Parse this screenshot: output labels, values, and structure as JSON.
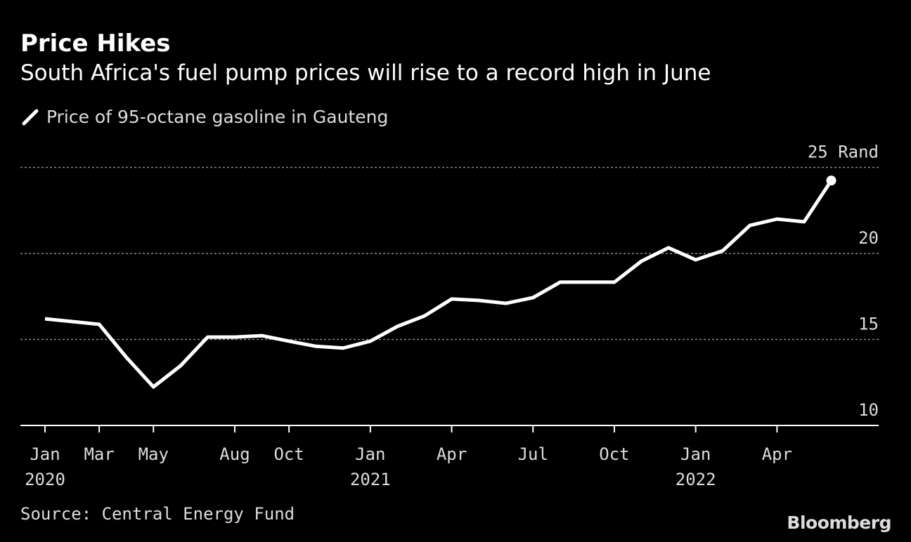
{
  "header": {
    "title": "Price Hikes",
    "subtitle": "South Africa's fuel pump prices will rise to a record high in June"
  },
  "footer": {
    "source": "Source: Central Energy Fund",
    "logo": "Bloomberg"
  },
  "chart_data": {
    "type": "line",
    "title": "Price Hikes",
    "subtitle": "South Africa's fuel pump prices will rise to a record high in June",
    "legend": [
      "Price of 95-octane gasoline in Gauteng"
    ],
    "ylabel": "Rand",
    "ylim": [
      10,
      25
    ],
    "yticks": [
      {
        "value": 25,
        "label": "25 Rand"
      },
      {
        "value": 20,
        "label": "20"
      },
      {
        "value": 15,
        "label": "15"
      },
      {
        "value": 10,
        "label": "10"
      }
    ],
    "xticks": [
      {
        "index": 0,
        "label": "Jan",
        "year": "2020"
      },
      {
        "index": 2,
        "label": "Mar",
        "year": ""
      },
      {
        "index": 4,
        "label": "May",
        "year": ""
      },
      {
        "index": 7,
        "label": "Aug",
        "year": ""
      },
      {
        "index": 9,
        "label": "Oct",
        "year": ""
      },
      {
        "index": 12,
        "label": "Jan",
        "year": "2021"
      },
      {
        "index": 15,
        "label": "Apr",
        "year": ""
      },
      {
        "index": 18,
        "label": "Jul",
        "year": ""
      },
      {
        "index": 21,
        "label": "Oct",
        "year": ""
      },
      {
        "index": 24,
        "label": "Jan",
        "year": "2022"
      },
      {
        "index": 27,
        "label": "Apr",
        "year": ""
      }
    ],
    "grid": true,
    "series": [
      {
        "name": "Price of 95-octane gasoline in Gauteng",
        "color": "#ffffff",
        "x": [
          "2020-01",
          "2020-02",
          "2020-03",
          "2020-04",
          "2020-05",
          "2020-06",
          "2020-07",
          "2020-08",
          "2020-09",
          "2020-10",
          "2020-11",
          "2020-12",
          "2021-01",
          "2021-02",
          "2021-03",
          "2021-04",
          "2021-05",
          "2021-06",
          "2021-07",
          "2021-08",
          "2021-09",
          "2021-10",
          "2021-11",
          "2021-12",
          "2022-01",
          "2022-02",
          "2022-03",
          "2022-04",
          "2022-05",
          "2022-06"
        ],
        "values": [
          16.2,
          16.04,
          15.88,
          13.96,
          12.24,
          13.47,
          15.14,
          15.14,
          15.22,
          14.9,
          14.6,
          14.5,
          14.9,
          15.76,
          16.37,
          17.35,
          17.27,
          17.1,
          17.43,
          18.33,
          18.33,
          18.33,
          19.55,
          20.33,
          19.63,
          20.16,
          21.63,
          22.0,
          21.84,
          24.24
        ]
      }
    ]
  }
}
